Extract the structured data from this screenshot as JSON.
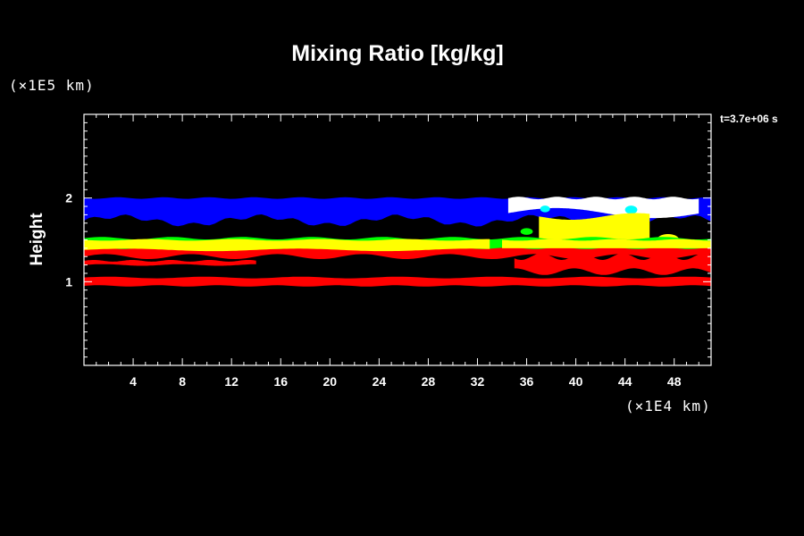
{
  "chart_data": {
    "type": "heatmap",
    "title": "Mixing Ratio [kg/kg]",
    "ylabel": "Height",
    "xlabel": "",
    "x_unit": "(×1E4 km)",
    "y_unit": "(×1E5 km)",
    "time_label": "t=3.7e+06 s",
    "xlim": [
      0,
      51
    ],
    "ylim": [
      0,
      3
    ],
    "x_ticks": [
      4,
      8,
      12,
      16,
      20,
      24,
      28,
      32,
      36,
      40,
      44,
      48
    ],
    "y_ticks": [
      1,
      2
    ],
    "grid": false,
    "colors": {
      "background": "#000000",
      "low": "#ff0000",
      "low_mid": "#00ff00",
      "mid": "#ffff00",
      "mid_high": "#00ffff",
      "high": "#0000ff",
      "peak": "#ffffff"
    }
  }
}
